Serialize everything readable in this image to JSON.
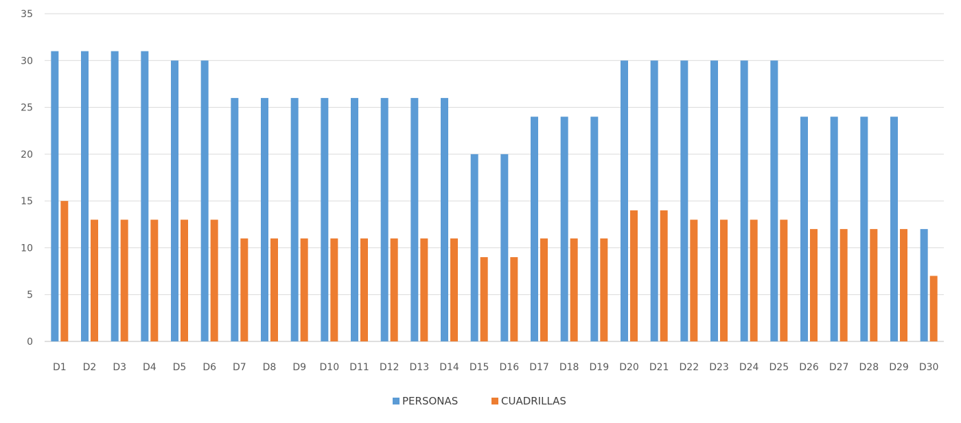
{
  "chart_data": {
    "type": "bar",
    "title": "",
    "xlabel": "",
    "ylabel": "",
    "ylim": [
      0,
      35
    ],
    "yticks": [
      0,
      5,
      10,
      15,
      20,
      25,
      30,
      35
    ],
    "grid": true,
    "legend_position": "bottom",
    "categories": [
      "D1",
      "D2",
      "D3",
      "D4",
      "D5",
      "D6",
      "D7",
      "D8",
      "D9",
      "D10",
      "D11",
      "D12",
      "D13",
      "D14",
      "D15",
      "D16",
      "D17",
      "D18",
      "D19",
      "D20",
      "D21",
      "D22",
      "D23",
      "D24",
      "D25",
      "D26",
      "D27",
      "D28",
      "D29",
      "D30"
    ],
    "series": [
      {
        "name": "PERSONAS",
        "color": "#5b9bd5",
        "values": [
          31,
          31,
          31,
          31,
          30,
          30,
          26,
          26,
          26,
          26,
          26,
          26,
          26,
          26,
          20,
          20,
          24,
          24,
          24,
          30,
          30,
          30,
          30,
          30,
          30,
          24,
          24,
          24,
          24,
          12
        ]
      },
      {
        "name": "CUADRILLAS",
        "color": "#ed7d31",
        "values": [
          15,
          13,
          13,
          13,
          13,
          13,
          11,
          11,
          11,
          11,
          11,
          11,
          11,
          11,
          9,
          9,
          11,
          11,
          11,
          14,
          14,
          13,
          13,
          13,
          13,
          12,
          12,
          12,
          12,
          7
        ]
      }
    ]
  }
}
